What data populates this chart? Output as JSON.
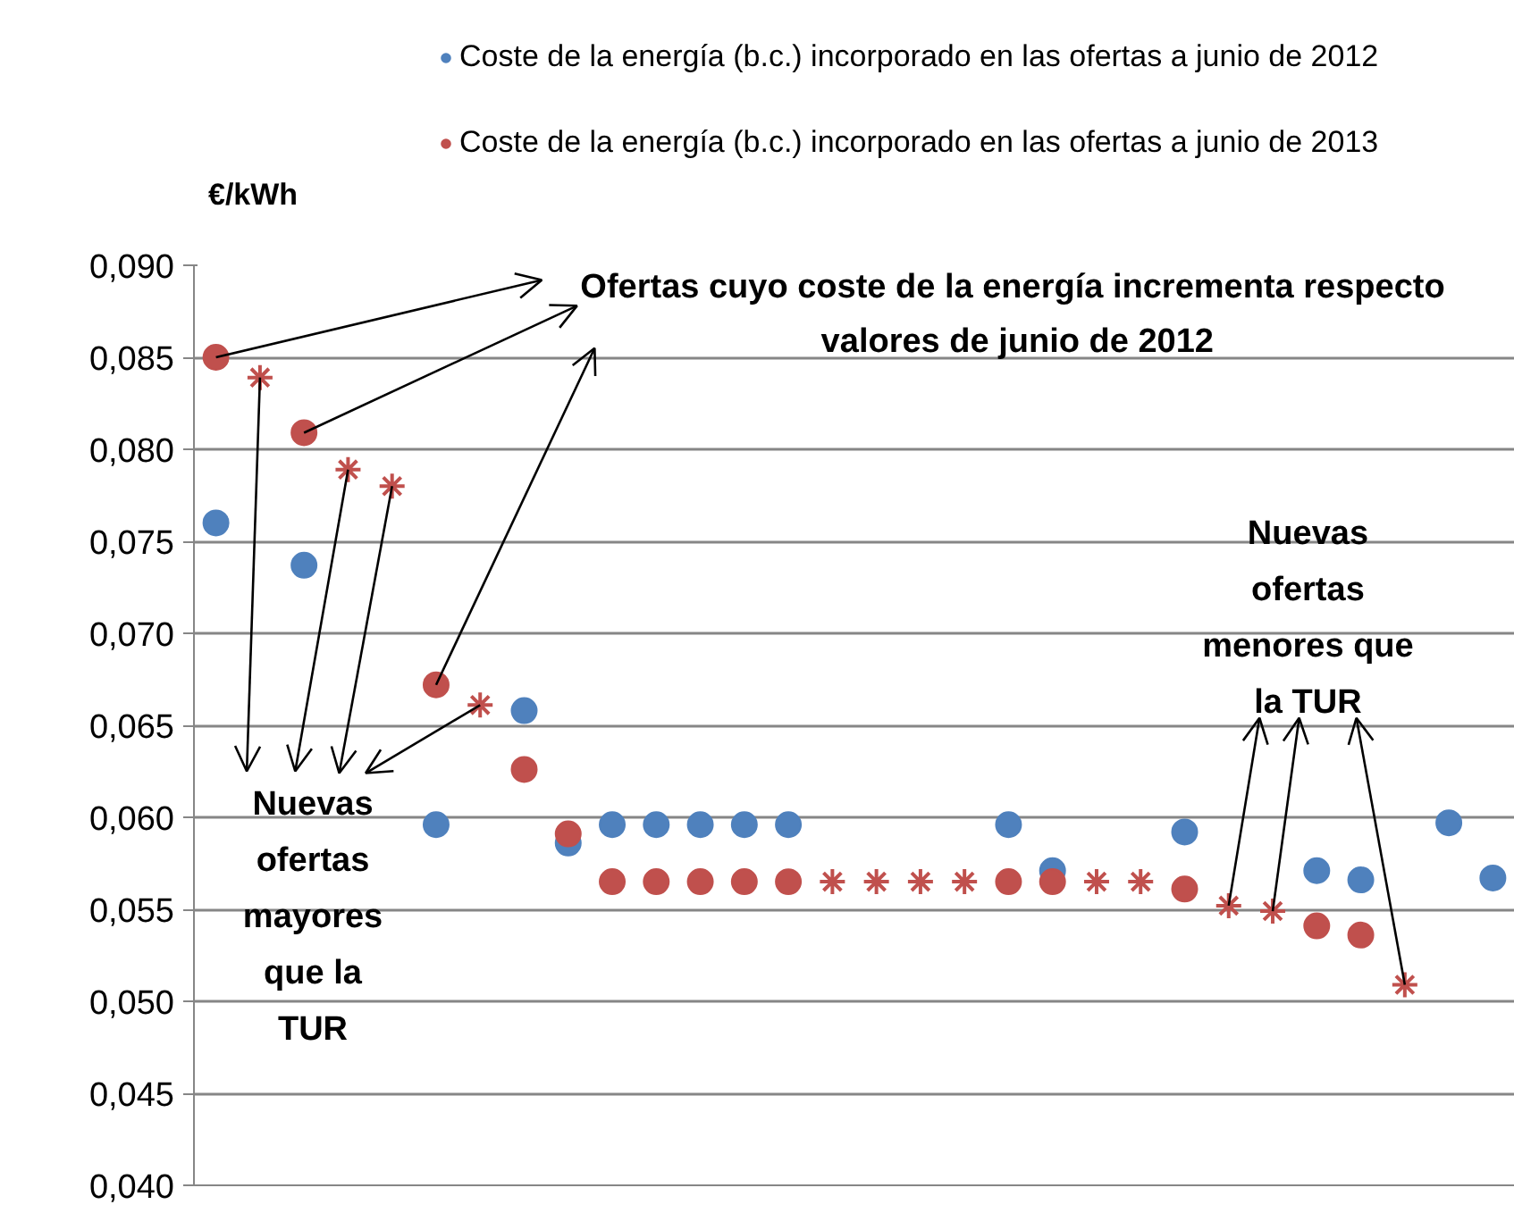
{
  "chart_data": {
    "type": "scatter",
    "ylabel": "€/kWh",
    "categories": [
      null,
      null,
      null,
      null,
      null,
      null,
      null,
      null,
      null,
      null,
      null,
      null,
      null,
      null,
      null,
      null,
      null,
      null,
      null,
      null,
      null,
      null,
      null,
      null,
      null,
      null,
      null,
      null,
      null,
      null
    ],
    "ylim": [
      0.04,
      0.09
    ],
    "yticks": [
      {
        "value": 0.04,
        "label": "0,040"
      },
      {
        "value": 0.045,
        "label": "0,045"
      },
      {
        "value": 0.05,
        "label": "0,050"
      },
      {
        "value": 0.055,
        "label": "0,055"
      },
      {
        "value": 0.06,
        "label": "0,060"
      },
      {
        "value": 0.065,
        "label": "0,065"
      },
      {
        "value": 0.07,
        "label": "0,070"
      },
      {
        "value": 0.075,
        "label": "0,075"
      },
      {
        "value": 0.08,
        "label": "0,080"
      },
      {
        "value": 0.085,
        "label": "0,085"
      },
      {
        "value": 0.09,
        "label": "0,090"
      }
    ],
    "grid": "y",
    "legend": "top right",
    "tick_labels": "y",
    "series": [
      {
        "name": "Coste de la energía (b.c.) incorporado en las ofertas a junio de 2012",
        "color": "#4f81bd",
        "marker": "circle",
        "values": [
          0.076,
          null,
          0.0737,
          null,
          null,
          0.0596,
          null,
          0.0658,
          0.0586,
          0.0596,
          0.0596,
          0.0596,
          0.0596,
          0.0596,
          null,
          null,
          null,
          null,
          0.0596,
          0.0571,
          null,
          null,
          0.0592,
          null,
          null,
          0.0571,
          0.0566,
          null,
          0.0597,
          0.0567
        ]
      },
      {
        "name": "Coste de la energía (b.c.) incorporado en las ofertas a junio de 2013",
        "color": "#c0504d",
        "marker": "circle",
        "values": [
          0.085,
          null,
          0.0809,
          null,
          null,
          0.0672,
          null,
          0.0626,
          0.0591,
          0.0565,
          0.0565,
          0.0565,
          0.0565,
          0.0565,
          null,
          null,
          null,
          null,
          0.0565,
          0.0565,
          null,
          null,
          0.0561,
          null,
          null,
          0.0541,
          0.0536,
          null,
          null,
          null
        ]
      },
      {
        "color": "#c0504d",
        "marker": "cross",
        "values": [
          null,
          0.0839,
          null,
          0.0789,
          0.078,
          null,
          0.0661,
          null,
          null,
          null,
          null,
          null,
          null,
          null,
          0.0565,
          0.0565,
          0.0565,
          0.0565,
          null,
          null,
          0.0565,
          0.0565,
          null,
          0.0552,
          0.0549,
          null,
          null,
          0.0509,
          null,
          null
        ]
      }
    ],
    "annotations": [
      "Ofertas  cuyo coste de la energía incrementa respecto\nvalores de junio de 2012",
      "Nuevas\nofertas\nmayores\nque la\nTUR",
      "Nuevas\nofertas\nmenores que\nla TUR"
    ]
  }
}
